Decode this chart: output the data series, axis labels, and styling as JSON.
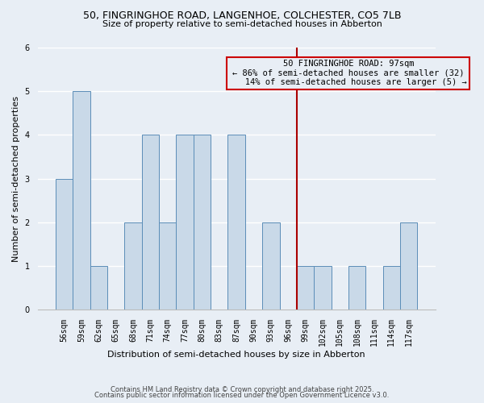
{
  "title_line1": "50, FINGRINGHOE ROAD, LANGENHOE, COLCHESTER, CO5 7LB",
  "title_line2": "Size of property relative to semi-detached houses in Abberton",
  "xlabel": "Distribution of semi-detached houses by size in Abberton",
  "ylabel": "Number of semi-detached properties",
  "footer_line1": "Contains HM Land Registry data © Crown copyright and database right 2025.",
  "footer_line2": "Contains public sector information licensed under the Open Government Licence v3.0.",
  "categories": [
    "56sqm",
    "59sqm",
    "62sqm",
    "65sqm",
    "68sqm",
    "71sqm",
    "74sqm",
    "77sqm",
    "80sqm",
    "83sqm",
    "87sqm",
    "90sqm",
    "93sqm",
    "96sqm",
    "99sqm",
    "102sqm",
    "105sqm",
    "108sqm",
    "111sqm",
    "114sqm",
    "117sqm"
  ],
  "values": [
    3,
    5,
    1,
    0,
    2,
    4,
    2,
    4,
    4,
    0,
    4,
    0,
    2,
    0,
    1,
    1,
    0,
    1,
    0,
    1,
    2
  ],
  "bar_color": "#c9d9e8",
  "bar_edge_color": "#5b8db8",
  "background_color": "#e8eef5",
  "grid_color": "#ffffff",
  "property_line_color": "#aa0000",
  "pct_smaller": 86,
  "count_smaller": 32,
  "pct_larger": 14,
  "count_larger": 5,
  "annotation_box_edge_color": "#cc0000",
  "ylim": [
    0,
    6
  ],
  "yticks": [
    0,
    1,
    2,
    3,
    4,
    5,
    6
  ],
  "title_fontsize": 9,
  "subtitle_fontsize": 8,
  "xlabel_fontsize": 8,
  "ylabel_fontsize": 8,
  "tick_fontsize": 7,
  "footer_fontsize": 6,
  "ann_fontsize": 7.5
}
